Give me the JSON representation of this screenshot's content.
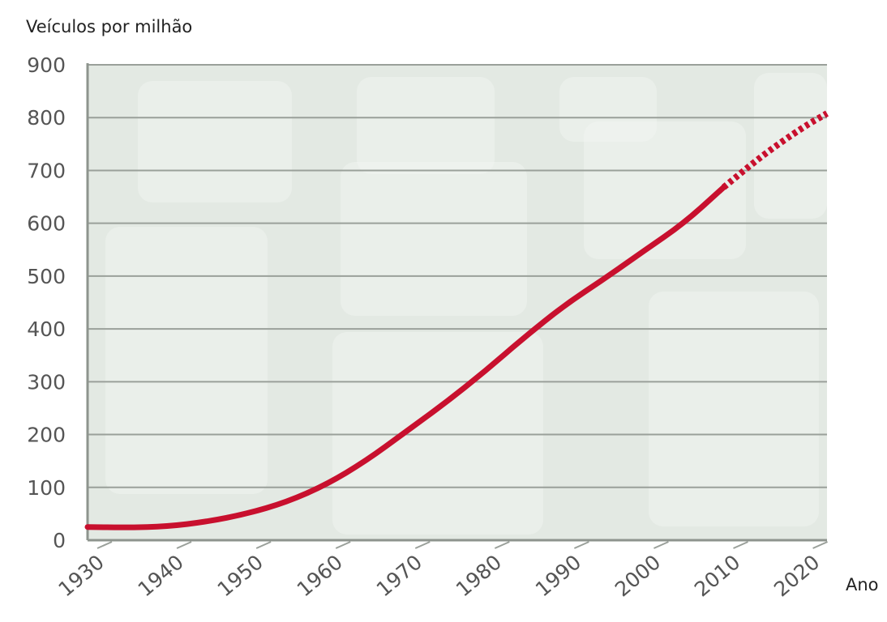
{
  "chart_data": {
    "type": "line",
    "ylabel": "Veículos por milhão",
    "xlabel": "Ano",
    "xlim": [
      1930,
      2023
    ],
    "ylim": [
      0,
      900
    ],
    "yticks": [
      0,
      100,
      200,
      300,
      400,
      500,
      600,
      700,
      800,
      900
    ],
    "xticks": [
      1930,
      1940,
      1950,
      1960,
      1970,
      1980,
      1990,
      2000,
      2010,
      2020
    ],
    "ytick_labels": [
      "0",
      "100",
      "200",
      "300",
      "400",
      "500",
      "600",
      "700",
      "800",
      "900"
    ],
    "xtick_labels": [
      "1930",
      "1940",
      "1950",
      "1960",
      "1970",
      "1980",
      "1990",
      "2000",
      "2010",
      "2020"
    ],
    "grid": "horizontal",
    "series": [
      {
        "style": "solid",
        "color": "#c8102e",
        "points": [
          [
            1930,
            25
          ],
          [
            1935,
            24
          ],
          [
            1940,
            26
          ],
          [
            1945,
            35
          ],
          [
            1950,
            50
          ],
          [
            1955,
            72
          ],
          [
            1960,
            105
          ],
          [
            1965,
            150
          ],
          [
            1970,
            205
          ],
          [
            1975,
            260
          ],
          [
            1980,
            320
          ],
          [
            1985,
            385
          ],
          [
            1990,
            445
          ],
          [
            1995,
            495
          ],
          [
            2000,
            548
          ],
          [
            2005,
            600
          ],
          [
            2010,
            668
          ]
        ]
      },
      {
        "style": "dashed",
        "color": "#c8102e",
        "points": [
          [
            2010,
            668
          ],
          [
            2015,
            730
          ],
          [
            2020,
            782
          ],
          [
            2023,
            808
          ]
        ]
      }
    ],
    "background": {
      "plot_fill": "#e3e9e3",
      "photo_tint": "#d5dcd5"
    }
  }
}
